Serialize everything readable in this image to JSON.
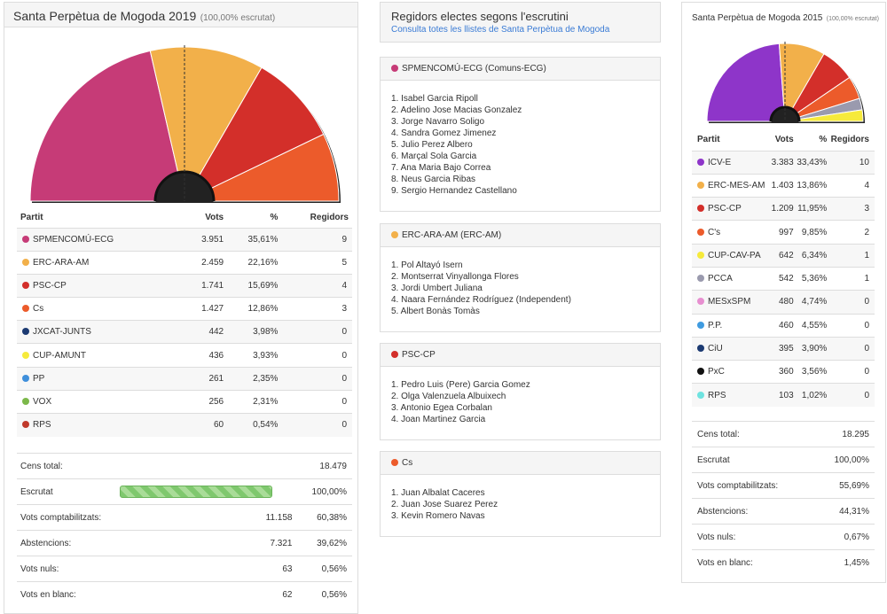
{
  "left": {
    "title": "Santa Perpètua de Mogoda 2019",
    "subtitle": "(100,00% escrutat)",
    "headers": {
      "party": "Partit",
      "votes": "Vots",
      "pct": "%",
      "seats": "Regidors"
    },
    "parties": [
      {
        "name": "SPMENCOMÚ-ECG",
        "votes": "3.951",
        "pct": "35,61%",
        "seats": "9",
        "color": "#c63b77"
      },
      {
        "name": "ERC-ARA-AM",
        "votes": "2.459",
        "pct": "22,16%",
        "seats": "5",
        "color": "#f2b04a"
      },
      {
        "name": "PSC-CP",
        "votes": "1.741",
        "pct": "15,69%",
        "seats": "4",
        "color": "#d32f2a"
      },
      {
        "name": "Cs",
        "votes": "1.427",
        "pct": "12,86%",
        "seats": "3",
        "color": "#ec5b2b"
      },
      {
        "name": "JXCAT-JUNTS",
        "votes": "442",
        "pct": "3,98%",
        "seats": "0",
        "color": "#1c3a72"
      },
      {
        "name": "CUP-AMUNT",
        "votes": "436",
        "pct": "3,93%",
        "seats": "0",
        "color": "#f6ea3b"
      },
      {
        "name": "PP",
        "votes": "261",
        "pct": "2,35%",
        "seats": "0",
        "color": "#3f8fdb"
      },
      {
        "name": "VOX",
        "votes": "256",
        "pct": "2,31%",
        "seats": "0",
        "color": "#7cb84a"
      },
      {
        "name": "RPS",
        "votes": "60",
        "pct": "0,54%",
        "seats": "0",
        "color": "#c0392b"
      }
    ],
    "stats": [
      {
        "label": "Cens total:",
        "v1": "",
        "v2": "18.479"
      },
      {
        "label": "Escrutat",
        "v1": "",
        "v2": "100,00%"
      },
      {
        "label": "Vots comptabilitzats:",
        "v1": "11.158",
        "v2": "60,38%"
      },
      {
        "label": "Abstencions:",
        "v1": "7.321",
        "v2": "39,62%"
      },
      {
        "label": "Vots nuls:",
        "v1": "63",
        "v2": "0,56%"
      },
      {
        "label": "Vots en blanc:",
        "v1": "62",
        "v2": "0,56%"
      }
    ],
    "scrutiny_fraction": 1.0,
    "seat_chart": [
      {
        "color": "#c63b77",
        "seats": 9
      },
      {
        "color": "#f2b04a",
        "seats": 5
      },
      {
        "color": "#d32f2a",
        "seats": 4
      },
      {
        "color": "#ec5b2b",
        "seats": 3
      }
    ]
  },
  "middle": {
    "title": "Regidors electes segons l'escrutini",
    "link": "Consulta totes les llistes de Santa Perpètua de Mogoda",
    "groups": [
      {
        "name": "SPMENCOMÚ-ECG (Comuns-ECG)",
        "color": "#c63b77",
        "members": [
          "1. Isabel Garcia Ripoll",
          "2. Adelino Jose Macias Gonzalez",
          "3. Jorge Navarro Soligo",
          "4. Sandra Gomez Jimenez",
          "5. Julio Perez Albero",
          "6. Marçal Sola Garcia",
          "7. Ana Maria Bajo Correa",
          "8. Neus Garcia Ribas",
          "9. Sergio Hernandez Castellano"
        ]
      },
      {
        "name": "ERC-ARA-AM (ERC-AM)",
        "color": "#f2b04a",
        "members": [
          "1. Pol Altayó Isern",
          "2. Montserrat Vinyallonga Flores",
          "3. Jordi Umbert Juliana",
          "4. Naara Fernández Rodríguez (Independent)",
          "5. Albert Bonàs Tomàs"
        ]
      },
      {
        "name": "PSC-CP",
        "color": "#d32f2a",
        "members": [
          "1. Pedro Luis (Pere) Garcia Gomez",
          "2. Olga Valenzuela Albuixech",
          "3. Antonio Egea Corbalan",
          "4. Joan Martinez Garcia"
        ]
      },
      {
        "name": "Cs",
        "color": "#ec5b2b",
        "members": [
          "1. Juan Albalat Caceres",
          "2. Juan Jose Suarez Perez",
          "3. Kevin Romero Navas"
        ]
      }
    ]
  },
  "right": {
    "title": "Santa Perpètua de Mogoda 2015",
    "subtitle": "(100,00% escrutat)",
    "headers": {
      "party": "Partit",
      "votes": "Vots",
      "pct": "%",
      "seats": "Regidors"
    },
    "parties": [
      {
        "name": "ICV-E",
        "votes": "3.383",
        "pct": "33,43%",
        "seats": "10",
        "color": "#8e35c9"
      },
      {
        "name": "ERC-MES-AM",
        "votes": "1.403",
        "pct": "13,86%",
        "seats": "4",
        "color": "#f2b04a"
      },
      {
        "name": "PSC-CP",
        "votes": "1.209",
        "pct": "11,95%",
        "seats": "3",
        "color": "#d32f2a"
      },
      {
        "name": "C's",
        "votes": "997",
        "pct": "9,85%",
        "seats": "2",
        "color": "#ec5b2b"
      },
      {
        "name": "CUP-CAV-PA",
        "votes": "642",
        "pct": "6,34%",
        "seats": "1",
        "color": "#f6ea3b"
      },
      {
        "name": "PCCA",
        "votes": "542",
        "pct": "5,36%",
        "seats": "1",
        "color": "#9a9aae"
      },
      {
        "name": "MESxSPM",
        "votes": "480",
        "pct": "4,74%",
        "seats": "0",
        "color": "#e78fd0"
      },
      {
        "name": "P.P.",
        "votes": "460",
        "pct": "4,55%",
        "seats": "0",
        "color": "#3f9be0"
      },
      {
        "name": "CiU",
        "votes": "395",
        "pct": "3,90%",
        "seats": "0",
        "color": "#1c3a72"
      },
      {
        "name": "PxC",
        "votes": "360",
        "pct": "3,56%",
        "seats": "0",
        "color": "#111111"
      },
      {
        "name": "RPS",
        "votes": "103",
        "pct": "1,02%",
        "seats": "0",
        "color": "#6fe3e0"
      }
    ],
    "stats": [
      {
        "label": "Cens total:",
        "v2": "18.295"
      },
      {
        "label": "Escrutat",
        "v2": "100,00%"
      },
      {
        "label": "Vots comptabilitzats:",
        "v2": "55,69%"
      },
      {
        "label": "Abstencions:",
        "v2": "44,31%"
      },
      {
        "label": "Vots nuls:",
        "v2": "0,67%"
      },
      {
        "label": "Vots en blanc:",
        "v2": "1,45%"
      }
    ],
    "seat_chart": [
      {
        "color": "#8e35c9",
        "seats": 10
      },
      {
        "color": "#f2b04a",
        "seats": 4
      },
      {
        "color": "#d32f2a",
        "seats": 3
      },
      {
        "color": "#ec5b2b",
        "seats": 2
      },
      {
        "color": "#9a9aae",
        "seats": 1
      },
      {
        "color": "#f6ea3b",
        "seats": 1
      }
    ]
  }
}
